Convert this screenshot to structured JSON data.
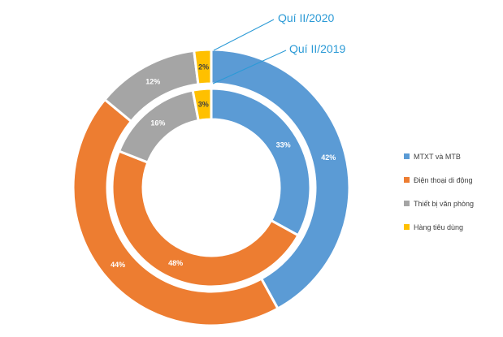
{
  "chart_data": {
    "type": "doughnut",
    "categories": [
      "MTXT và MTB",
      "Điện thoại di động",
      "Thiết bị văn phòng",
      "Hàng tiêu dùng"
    ],
    "colors": [
      "#5b9bd5",
      "#ed7d31",
      "#a5a5a5",
      "#ffc000"
    ],
    "series": [
      {
        "name": "Quí II/2020",
        "ring": "outer",
        "values": [
          42,
          44,
          12,
          2
        ]
      },
      {
        "name": "Quí II/2019",
        "ring": "inner",
        "values": [
          33,
          48,
          16,
          3
        ]
      }
    ],
    "legend_position": "right"
  }
}
